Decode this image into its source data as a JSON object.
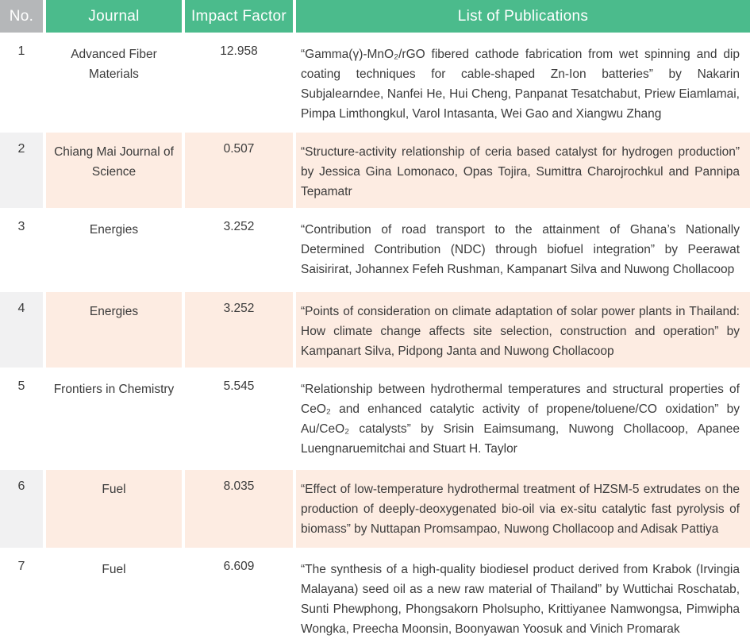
{
  "colors": {
    "header_green": "#4bbb8c",
    "header_no_gray": "#b5b7b9",
    "row_shaded_peach": "#fdece2",
    "row_shaded_no_gray": "#f1f1f2",
    "body_text": "#3b3b3b",
    "header_text": "#ffffff"
  },
  "header": {
    "columns": [
      {
        "label": "No."
      },
      {
        "label": "Journal"
      },
      {
        "label": "Impact Factor"
      },
      {
        "label": "List of Publications"
      }
    ]
  },
  "rows": [
    {
      "no": "1",
      "journal": "Advanced Fiber Materials",
      "impact_factor": "12.958",
      "publication": "“Gamma(γ)-MnO₂/rGO fibered cathode fabrication from wet spinning and dip coating techniques for cable-shaped Zn-Ion batteries” by Nakarin Subjalearndee, Nanfei He, Hui Cheng, Panpanat Tesatchabut, Priew Eiamlamai, Pimpa Limthongkul, Varol Intasanta, Wei Gao and Xiangwu Zhang"
    },
    {
      "no": "2",
      "journal": "Chiang Mai Journal of Science",
      "impact_factor": "0.507",
      "publication": "“Structure-activity relationship of ceria based catalyst for hydrogen production” by Jessica Gina Lomonaco, Opas Tojira, Sumittra Charojrochkul and Pannipa Tepamatr"
    },
    {
      "no": "3",
      "journal": "Energies",
      "impact_factor": "3.252",
      "publication": "“Contribution of road transport to the attainment of Ghana’s Nationally Determined Contribution (NDC) through biofuel integration” by Peerawat Saisirirat, Johannex Fefeh Rushman, Kampanart Silva and Nuwong Chollacoop"
    },
    {
      "no": "4",
      "journal": "Energies",
      "impact_factor": "3.252",
      "publication": "“Points of consideration on climate adaptation of solar power plants in Thailand: How climate change affects site selection, construction and operation” by Kampanart Silva, Pidpong Janta and Nuwong Chollacoop"
    },
    {
      "no": "5",
      "journal": "Frontiers in Chemistry",
      "impact_factor": "5.545",
      "publication": "“Relationship between hydrothermal temperatures and structural properties of CeO₂ and enhanced catalytic activity of propene/toluene/CO oxidation” by Au/CeO₂ catalysts” by Srisin Eaimsumang, Nuwong Chollacoop, Apanee Luengnaruemitchai and Stuart H. Taylor"
    },
    {
      "no": "6",
      "journal": "Fuel",
      "impact_factor": "8.035",
      "publication": "“Effect of low-temperature hydrothermal treatment of HZSM-5 extrudates on the production of deeply-deoxygenated bio-oil via ex-situ catalytic fast pyrolysis of biomass” by Nuttapan Promsampao, Nuwong Chollacoop and Adisak Pattiya"
    },
    {
      "no": "7",
      "journal": "Fuel",
      "impact_factor": "6.609",
      "publication": "“The synthesis of a high-quality biodiesel product derived from Krabok (Irvingia Malayana) seed oil as a new raw material of Thailand” by Wuttichai Roschatab, Sunti Phewphong, Phongsakorn Pholsupho, Krittiyanee Namwongsa, Pimwipha Wongka, Preecha Moonsin, Boonyawan Yoosuk and Vinich Promarak"
    }
  ]
}
